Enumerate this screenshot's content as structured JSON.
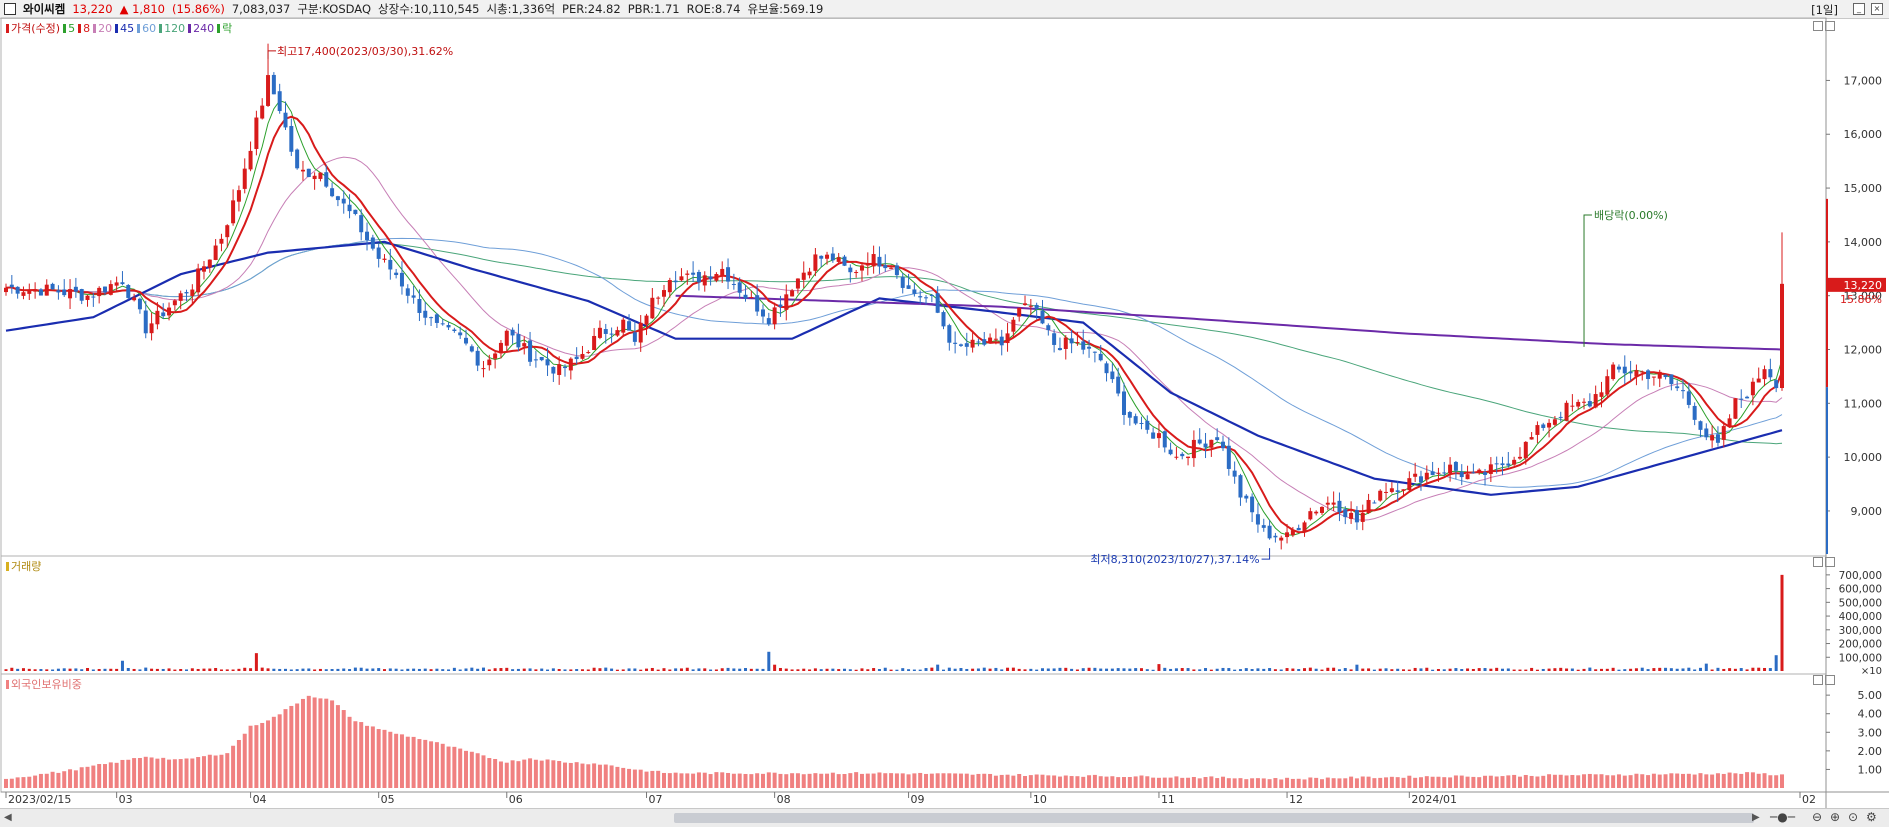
{
  "header": {
    "name": "와이씨켐",
    "price": "13,220",
    "change": "▲ 1,810",
    "change_pct": "(15.86%)",
    "volume": "7,083,037",
    "market": "구분:KOSDAQ",
    "shares": "상장수:10,110,545",
    "mktcap": "시총:1,336억",
    "per": "PER:24.82",
    "pbr": "PBR:1.71",
    "roe": "ROE:8.74",
    "float": "유보율:569.19",
    "period": "[1일]"
  },
  "legend": {
    "items": [
      {
        "label": "가격(수정)",
        "color": "#d81b1b"
      },
      {
        "label": "5",
        "color": "#2ca02c"
      },
      {
        "label": "8",
        "color": "#d81b1b"
      },
      {
        "label": "20",
        "color": "#c77fb6"
      },
      {
        "label": "45",
        "color": "#1a2db0"
      },
      {
        "label": "60",
        "color": "#6f9fd8"
      },
      {
        "label": "120",
        "color": "#4aa57a"
      },
      {
        "label": "240",
        "color": "#6b2aa8"
      },
      {
        "label": "락",
        "color": "#2ca02c"
      }
    ],
    "volume_label": "거래량",
    "foreign_label": "외국인보유비중"
  },
  "annotations": {
    "high": "최고17,400(2023/03/30),31.62%",
    "low": "최저8,310(2023/10/27),37.14%",
    "dividend": "배당락(0.00%)"
  },
  "price_tag": {
    "value": "13,220",
    "pct": "15.86%"
  },
  "colors": {
    "up": "#d81b1b",
    "down": "#2b6cc4",
    "foreign": "#f08080",
    "ma45": "#1a2db0",
    "ma240": "#6b2aa8"
  },
  "chart_data": {
    "type": "candlestick",
    "price_axis": {
      "ticks": [
        "17,000",
        "16,000",
        "15,000",
        "14,000",
        "13,000",
        "12,000",
        "11,000",
        "10,000",
        "9,000"
      ],
      "range": [
        8200,
        17900
      ]
    },
    "volume_axis": {
      "ticks": [
        "700,000",
        "600,000",
        "500,000",
        "400,000",
        "300,000",
        "200,000",
        "100,000"
      ],
      "unit": "×10",
      "range": [
        0,
        750000
      ]
    },
    "foreign_axis": {
      "ticks": [
        "5.00",
        "4.00",
        "3.00",
        "2.00",
        "1.00"
      ],
      "range": [
        0,
        5.6
      ]
    },
    "x_labels": [
      "2023/02/15",
      "03",
      "04",
      "05",
      "06",
      "07",
      "08",
      "09",
      "10",
      "11",
      "12",
      "2024/01",
      "02"
    ],
    "close_keypoints": [
      [
        0,
        13150
      ],
      [
        8,
        13100
      ],
      [
        14,
        13000
      ],
      [
        20,
        13300
      ],
      [
        24,
        12400
      ],
      [
        28,
        12800
      ],
      [
        32,
        13200
      ],
      [
        37,
        14100
      ],
      [
        40,
        15000
      ],
      [
        43,
        16200
      ],
      [
        45,
        17000
      ],
      [
        47,
        16500
      ],
      [
        50,
        15300
      ],
      [
        54,
        15300
      ],
      [
        57,
        14800
      ],
      [
        60,
        14400
      ],
      [
        64,
        13700
      ],
      [
        67,
        13400
      ],
      [
        70,
        12900
      ],
      [
        74,
        12400
      ],
      [
        78,
        12200
      ],
      [
        82,
        11700
      ],
      [
        86,
        12300
      ],
      [
        90,
        11900
      ],
      [
        95,
        11600
      ],
      [
        98,
        11800
      ],
      [
        102,
        12300
      ],
      [
        106,
        12500
      ],
      [
        108,
        12100
      ],
      [
        110,
        12700
      ],
      [
        114,
        13400
      ],
      [
        118,
        13300
      ],
      [
        123,
        13500
      ],
      [
        127,
        13000
      ],
      [
        131,
        12600
      ],
      [
        135,
        13200
      ],
      [
        139,
        13700
      ],
      [
        142,
        13700
      ],
      [
        145,
        13400
      ],
      [
        148,
        13700
      ],
      [
        152,
        13600
      ],
      [
        155,
        13100
      ],
      [
        159,
        12900
      ],
      [
        163,
        12000
      ],
      [
        167,
        12100
      ],
      [
        171,
        12100
      ],
      [
        174,
        12700
      ],
      [
        176,
        12800
      ],
      [
        180,
        12100
      ],
      [
        184,
        12100
      ],
      [
        188,
        11800
      ],
      [
        192,
        10900
      ],
      [
        195,
        10500
      ],
      [
        198,
        10400
      ],
      [
        201,
        10000
      ],
      [
        204,
        10200
      ],
      [
        208,
        10400
      ],
      [
        212,
        9300
      ],
      [
        216,
        8600
      ],
      [
        220,
        8500
      ],
      [
        224,
        9000
      ],
      [
        228,
        9200
      ],
      [
        232,
        8800
      ],
      [
        236,
        9400
      ],
      [
        240,
        9500
      ],
      [
        244,
        9700
      ],
      [
        248,
        9800
      ],
      [
        252,
        9600
      ],
      [
        256,
        9800
      ],
      [
        260,
        10100
      ],
      [
        264,
        10600
      ],
      [
        268,
        10900
      ],
      [
        272,
        11000
      ],
      [
        276,
        11600
      ],
      [
        280,
        11600
      ],
      [
        284,
        11500
      ],
      [
        288,
        11200
      ],
      [
        292,
        10400
      ],
      [
        294,
        10200
      ],
      [
        297,
        11000
      ],
      [
        300,
        11300
      ],
      [
        302,
        11700
      ],
      [
        304,
        11400
      ],
      [
        305,
        13220
      ]
    ],
    "ma45_keypoints": [
      [
        0,
        12350
      ],
      [
        15,
        12600
      ],
      [
        30,
        13400
      ],
      [
        45,
        13800
      ],
      [
        65,
        14000
      ],
      [
        80,
        13500
      ],
      [
        100,
        12900
      ],
      [
        115,
        12200
      ],
      [
        135,
        12200
      ],
      [
        150,
        12950
      ],
      [
        170,
        12700
      ],
      [
        185,
        12500
      ],
      [
        200,
        11200
      ],
      [
        215,
        10400
      ],
      [
        235,
        9600
      ],
      [
        255,
        9300
      ],
      [
        270,
        9450
      ],
      [
        285,
        9900
      ],
      [
        305,
        10500
      ]
    ],
    "ma240_keypoints": [
      [
        115,
        13000
      ],
      [
        170,
        12800
      ],
      [
        200,
        12600
      ],
      [
        240,
        12300
      ],
      [
        275,
        12100
      ],
      [
        305,
        12000
      ]
    ],
    "high_low": {
      "high": 17400,
      "high_date": "2023/03/30",
      "low": 8310,
      "low_date": "2023/10/27"
    }
  }
}
